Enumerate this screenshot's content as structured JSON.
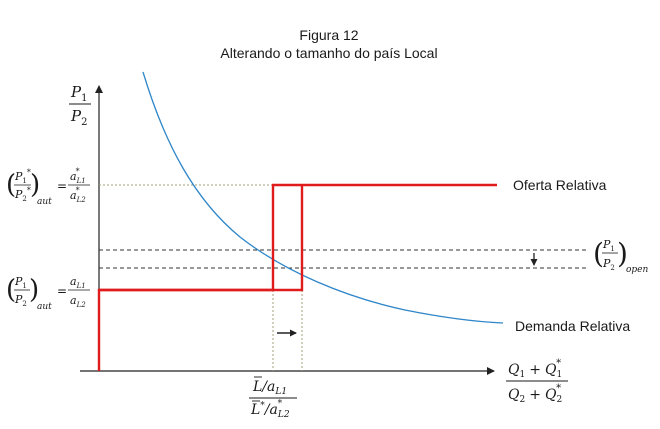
{
  "figure": {
    "title": "Figura 12",
    "subtitle": "Alterando o tamanho do país Local"
  },
  "curves": {
    "supply_label": "Oferta Relativa",
    "demand_label": "Demanda Relativa"
  },
  "colors": {
    "supply": "#e01b1b",
    "demand": "#2f86c8",
    "axis": "#222222",
    "guide": "#a3a07a",
    "dashed": "#333333"
  },
  "labels": {
    "y_axis": {
      "num": "P",
      "num_sub": "1",
      "den": "P",
      "den_sub": "2"
    },
    "x_axis": {
      "num_a": "Q",
      "num_a_sub": "1",
      "plus": "+",
      "num_b": "Q",
      "num_b_sub": "1",
      "num_b_sup": "*",
      "den_a": "Q",
      "den_a_sub": "2",
      "den_b": "Q",
      "den_b_sub": "2",
      "den_b_sup": "*"
    },
    "upper_level": {
      "lhs_num": "P",
      "lhs_num_sub": "1",
      "lhs_sup": "*",
      "lhs_den": "P",
      "lhs_den_sub": "2",
      "outer_sub": "aut",
      "eq": "=",
      "rhs_num": "a",
      "rhs_num_sub": "L1",
      "rhs_sup": "*",
      "rhs_den": "a",
      "rhs_den_sub": "L2"
    },
    "lower_level": {
      "lhs_num": "P",
      "lhs_num_sub": "1",
      "lhs_den": "P",
      "lhs_den_sub": "2",
      "outer_sub": "aut",
      "eq": "=",
      "rhs_num": "a",
      "rhs_num_sub": "L1",
      "rhs_den": "a",
      "rhs_den_sub": "L2"
    },
    "open_price": {
      "num": "P",
      "num_sub": "1",
      "den": "P",
      "den_sub": "2",
      "outer_sub": "open"
    },
    "x_break": {
      "num": "L/a",
      "num_sub": "L1",
      "den": "L",
      "den_sup": "*",
      "den_rest": "/a",
      "den_sub": "L2",
      "den_rest_sup": "*"
    }
  }
}
